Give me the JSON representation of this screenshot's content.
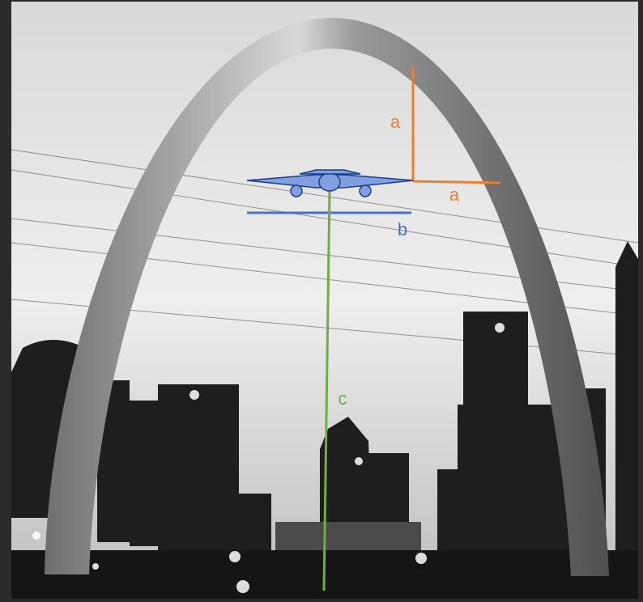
{
  "annotations": [
    {
      "label": "a"
    },
    {
      "label": "a"
    },
    {
      "label": "b"
    },
    {
      "label": "c"
    }
  ]
}
